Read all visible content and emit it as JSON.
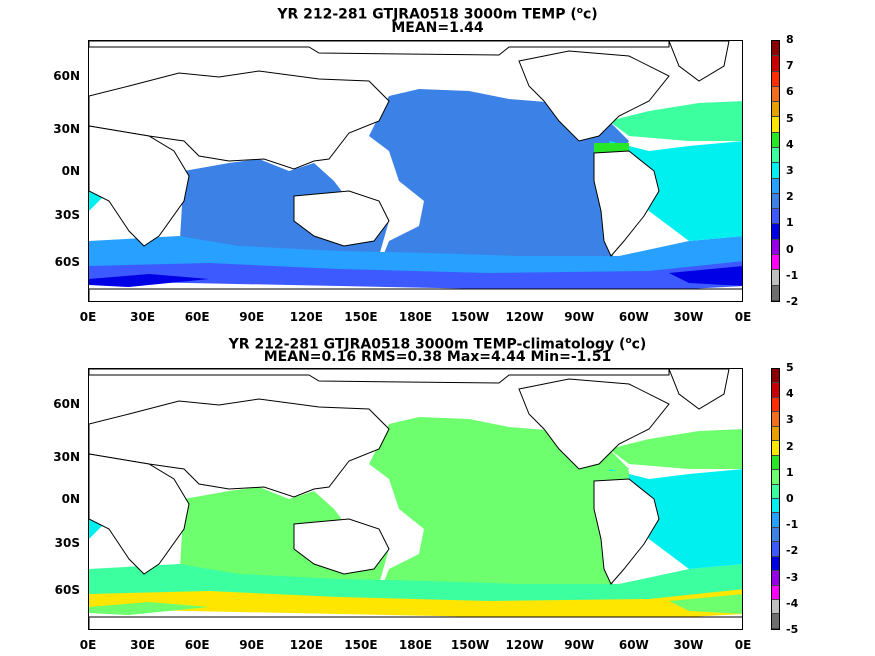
{
  "panels": [
    {
      "title": "YR 212-281 GTJRA0518 3000m TEMP (",
      "title_sup": "o",
      "title_end": "c)",
      "subtitle": "MEAN=1.44",
      "colorbar_labels": [
        "8",
        "7",
        "6",
        "5",
        "4",
        "3",
        "2",
        "1",
        "0",
        "-1",
        "-2"
      ],
      "colorbar_colors": [
        "#8b0000",
        "#c80000",
        "#ff2d00",
        "#f06e1e",
        "#e6a000",
        "#ffe600",
        "#28e628",
        "#3cffa0",
        "#00f0f0",
        "#28a0ff",
        "#3c82e6",
        "#3c5aff",
        "#0000e6",
        "#9600e6",
        "#ff00ff",
        "#bebebe",
        "#6e6e6e"
      ],
      "fields": [
        {
          "color": "#3c82e6",
          "region": "pacific"
        },
        {
          "color": "#3c82e6",
          "region": "indian"
        },
        {
          "color": "#28a0ff",
          "region": "south_band"
        },
        {
          "color": "#3c5aff",
          "region": "southern_ocean"
        },
        {
          "color": "#0000e6",
          "region": "antarctic_deep"
        },
        {
          "color": "#00f0f0",
          "region": "atlantic"
        },
        {
          "color": "#3cffa0",
          "region": "north_atlantic"
        },
        {
          "color": "#ff00ff",
          "region": "arctic"
        },
        {
          "color": "#28e628",
          "region": "caribbean"
        }
      ]
    },
    {
      "title": "YR 212-281 GTJRA0518 3000m TEMP-climatology (",
      "title_sup": "o",
      "title_end": "c)",
      "subtitle": "MEAN=0.16   RMS=0.38   Max=4.44   Min=-1.51",
      "colorbar_labels": [
        "5",
        "4",
        "3",
        "2",
        "1",
        "0",
        "-1",
        "-2",
        "-3",
        "-4",
        "-5"
      ],
      "colorbar_colors": [
        "#8b0000",
        "#c80000",
        "#ff2d00",
        "#f06e1e",
        "#e6a000",
        "#ffe600",
        "#28e628",
        "#6eff6e",
        "#3cffa0",
        "#00f0f0",
        "#28a0ff",
        "#3c82e6",
        "#3c5aff",
        "#0000e6",
        "#9600e6",
        "#ff00ff",
        "#bebebe",
        "#6e6e6e"
      ],
      "fields": [
        {
          "color": "#6eff6e",
          "region": "pacific"
        },
        {
          "color": "#6eff6e",
          "region": "indian"
        },
        {
          "color": "#3cffa0",
          "region": "south_band"
        },
        {
          "color": "#ffe600",
          "region": "southern_ocean"
        },
        {
          "color": "#6eff6e",
          "region": "antarctic_deep"
        },
        {
          "color": "#00f0f0",
          "region": "atlantic"
        },
        {
          "color": "#6eff6e",
          "region": "north_atlantic"
        },
        {
          "color": "#6eff6e",
          "region": "arctic"
        },
        {
          "color": "#6eff6e",
          "region": "caribbean"
        }
      ]
    }
  ],
  "lat_labels": [
    "60N",
    "30N",
    "0N",
    "30S",
    "60S"
  ],
  "lon_labels": [
    "0E",
    "30E",
    "60E",
    "90E",
    "120E",
    "150E",
    "180E",
    "150W",
    "120W",
    "90W",
    "60W",
    "30W",
    "0E"
  ]
}
